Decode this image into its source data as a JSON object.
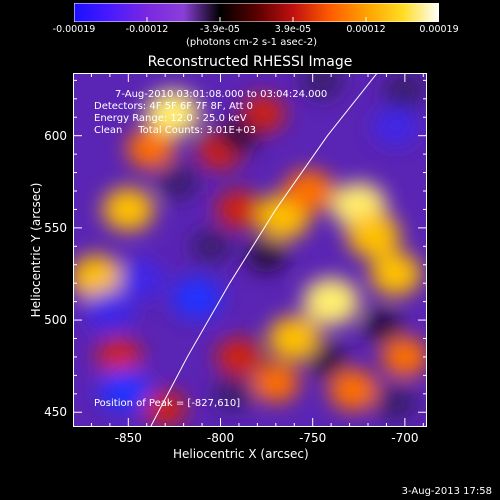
{
  "colorbar": {
    "tick_labels": [
      "-0.00019",
      "-0.00012",
      "-3.9e-05",
      "3.9e-05",
      "0.00012",
      "0.00019"
    ],
    "unit_text": "(photons cm-2 s-1 asec-2)",
    "colors": [
      "#1a10ff",
      "#4a1aff",
      "#7a28e0",
      "#8a3fd8",
      "#000000",
      "#5a0000",
      "#c01010",
      "#ff5a00",
      "#ffa000",
      "#ffdc20",
      "#ffffff"
    ]
  },
  "title": "Reconstructed RHESSI Image",
  "annotations": {
    "time_range": "7-Aug-2010 03:01:08.000 to 03:04:24.000",
    "detectors": "Detectors: 4F 5F 6F 7F 8F, Att 0",
    "energy": "Energy Range: 12.0 - 25.0 keV",
    "method": "Clean     Total Counts: 3.01E+03",
    "peak": "Position of Peak = [-827,610]"
  },
  "footer": "3-Aug-2013 17:58",
  "chart_data": {
    "type": "heatmap",
    "title": "Reconstructed RHESSI Image",
    "xlabel": "Heliocentric X (arcsec)",
    "ylabel": "Heliocentric Y (arcsec)",
    "xlim": [
      -880,
      -688
    ],
    "ylim": [
      442,
      634
    ],
    "xticks": [
      -850,
      -800,
      -750,
      -700
    ],
    "yticks": [
      450,
      500,
      550,
      600
    ],
    "colorbar_range": [
      -0.00019,
      0.00019
    ],
    "limb_line": [
      [
        -838,
        442
      ],
      [
        -818,
        480
      ],
      [
        -795,
        520
      ],
      [
        -770,
        560
      ],
      [
        -742,
        600
      ],
      [
        -715,
        634
      ]
    ],
    "peak_position": [
      -827,
      610
    ],
    "blobs": [
      {
        "x": -867,
        "y": 523,
        "v": 0.9
      },
      {
        "x": -850,
        "y": 560,
        "v": 0.8
      },
      {
        "x": -826,
        "y": 612,
        "v": 0.95
      },
      {
        "x": -838,
        "y": 593,
        "v": 0.65
      },
      {
        "x": -800,
        "y": 592,
        "v": 0.55
      },
      {
        "x": -777,
        "y": 612,
        "v": 0.5
      },
      {
        "x": -790,
        "y": 560,
        "v": 0.55
      },
      {
        "x": -766,
        "y": 556,
        "v": 0.9
      },
      {
        "x": -752,
        "y": 570,
        "v": 0.75
      },
      {
        "x": -725,
        "y": 562,
        "v": 0.95
      },
      {
        "x": -717,
        "y": 546,
        "v": 0.9
      },
      {
        "x": -740,
        "y": 510,
        "v": 1.0
      },
      {
        "x": -705,
        "y": 525,
        "v": 0.8
      },
      {
        "x": -760,
        "y": 490,
        "v": 0.85
      },
      {
        "x": -790,
        "y": 480,
        "v": 0.55
      },
      {
        "x": -770,
        "y": 466,
        "v": 0.6
      },
      {
        "x": -728,
        "y": 462,
        "v": 0.7
      },
      {
        "x": -700,
        "y": 480,
        "v": 0.6
      },
      {
        "x": -855,
        "y": 480,
        "v": 0.55
      },
      {
        "x": -830,
        "y": 452,
        "v": 0.4
      },
      {
        "x": -843,
        "y": 522,
        "v": -0.6
      },
      {
        "x": -860,
        "y": 505,
        "v": -0.7
      },
      {
        "x": -852,
        "y": 462,
        "v": -0.8
      },
      {
        "x": -813,
        "y": 512,
        "v": -0.75
      },
      {
        "x": -805,
        "y": 540,
        "v": -0.4
      },
      {
        "x": -823,
        "y": 575,
        "v": -0.45
      },
      {
        "x": -790,
        "y": 600,
        "v": -0.35
      },
      {
        "x": -775,
        "y": 535,
        "v": -0.35
      },
      {
        "x": -793,
        "y": 460,
        "v": -0.4
      },
      {
        "x": -745,
        "y": 630,
        "v": -0.5
      },
      {
        "x": -705,
        "y": 605,
        "v": -0.55
      },
      {
        "x": -700,
        "y": 625,
        "v": -0.5
      },
      {
        "x": -742,
        "y": 478,
        "v": -0.3
      },
      {
        "x": -712,
        "y": 497,
        "v": -0.3
      },
      {
        "x": -705,
        "y": 455,
        "v": -0.5
      }
    ]
  }
}
